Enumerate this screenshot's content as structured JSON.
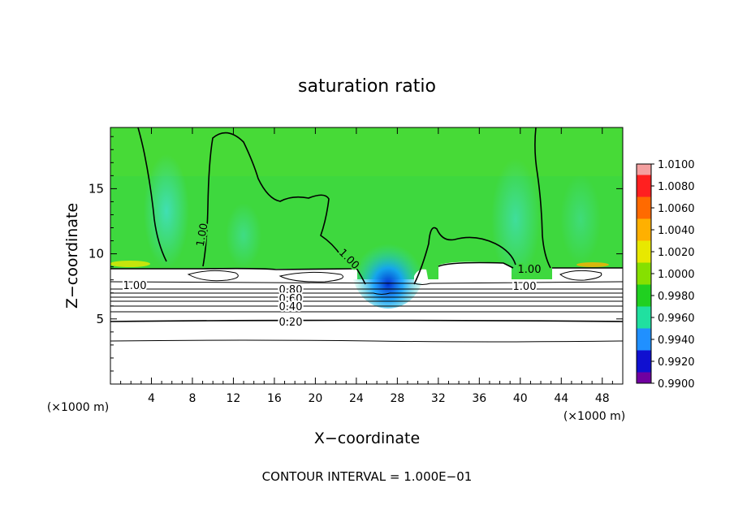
{
  "chart_data": {
    "type": "heatmap",
    "title": "saturation ratio",
    "xlabel": "X−coordinate",
    "ylabel": "Z−coordinate",
    "x_unit_label": "(×1000 m)",
    "y_unit_label": "(×1000 m)",
    "xlim": [
      0,
      50
    ],
    "ylim": [
      0,
      19.7
    ],
    "x_ticks": [
      4,
      8,
      12,
      16,
      20,
      24,
      28,
      32,
      36,
      40,
      44,
      48
    ],
    "y_ticks": [
      5,
      10,
      15
    ],
    "footer": "CONTOUR INTERVAL = 1.000E−01",
    "colorbar": {
      "labels": [
        "1.0100",
        "1.0080",
        "1.0060",
        "1.0040",
        "1.0020",
        "1.0000",
        "0.9980",
        "0.9960",
        "0.9940",
        "0.9920",
        "0.9900"
      ],
      "colors": [
        "#f4a0a0",
        "#ff2020",
        "#ff6a00",
        "#ffb000",
        "#e8e800",
        "#86e000",
        "#20d020",
        "#20e0a0",
        "#2090ff",
        "#1010d0",
        "#7000a0"
      ],
      "range": [
        0.99,
        1.01
      ]
    },
    "contour_labels": [
      {
        "text": "1.00",
        "x": 9.2,
        "z": 11.1
      },
      {
        "text": "1.00",
        "x": 23.0,
        "z": 9.8
      },
      {
        "text": "1.00",
        "x": 40.3,
        "z": 8.6
      },
      {
        "text": "1.00",
        "x": 40.5,
        "z": 7.7
      },
      {
        "text": "1.00",
        "x": 2.5,
        "z": 7.7
      },
      {
        "text": "0.80",
        "x": 17.7,
        "z": 7.3
      },
      {
        "text": "0.60",
        "x": 17.7,
        "z": 6.8
      },
      {
        "text": "0.40",
        "x": 17.7,
        "z": 6.2
      },
      {
        "text": "0.20",
        "x": 17.7,
        "z": 4.8
      }
    ]
  }
}
